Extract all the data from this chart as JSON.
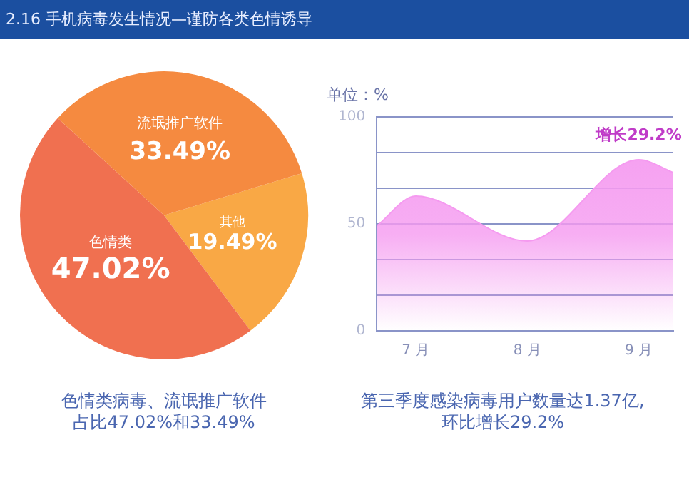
{
  "chart_data": [
    {
      "type": "pie",
      "title": "2.16 手机病毒发生情况—谨防各类色情诱导",
      "categories": [
        "其他",
        "色情类",
        "流氓推广软件"
      ],
      "values": [
        19.49,
        47.02,
        33.49
      ],
      "colors": [
        "#f9a845",
        "#f07050",
        "#f58a40"
      ],
      "value_labels": [
        "19.49%",
        "47.02%",
        "33.49%"
      ],
      "legend": false,
      "annotations": [
        "色情类病毒、流氓推广软件",
        "占比47.02%和33.49%"
      ]
    },
    {
      "type": "area",
      "ylabel": "单位：%",
      "x": [
        6.65,
        7,
        8,
        9,
        9.31
      ],
      "values": [
        49,
        63,
        42,
        80,
        74
      ],
      "color": "#f59af0",
      "xlim": [
        6.65,
        9.31
      ],
      "xticks": [
        {
          "value": 7,
          "label": "7 月"
        },
        {
          "value": 8,
          "label": "8 月"
        },
        {
          "value": 9,
          "label": "9 月"
        }
      ],
      "ylim": [
        0,
        100
      ],
      "yticks": [
        0,
        {
          "value": 16.67,
          "label": null
        },
        {
          "value": 33.33,
          "label": null
        },
        50,
        {
          "value": 66.67,
          "label": null
        },
        {
          "value": 83.33,
          "label": null
        },
        100
      ],
      "grid": "y",
      "legend": false,
      "annotations": [
        {
          "text": "增长29.2%",
          "x": 9,
          "y": 80
        },
        "第三季度感染病毒用户数量达1.37亿,",
        "环比增长29.2%"
      ]
    }
  ]
}
